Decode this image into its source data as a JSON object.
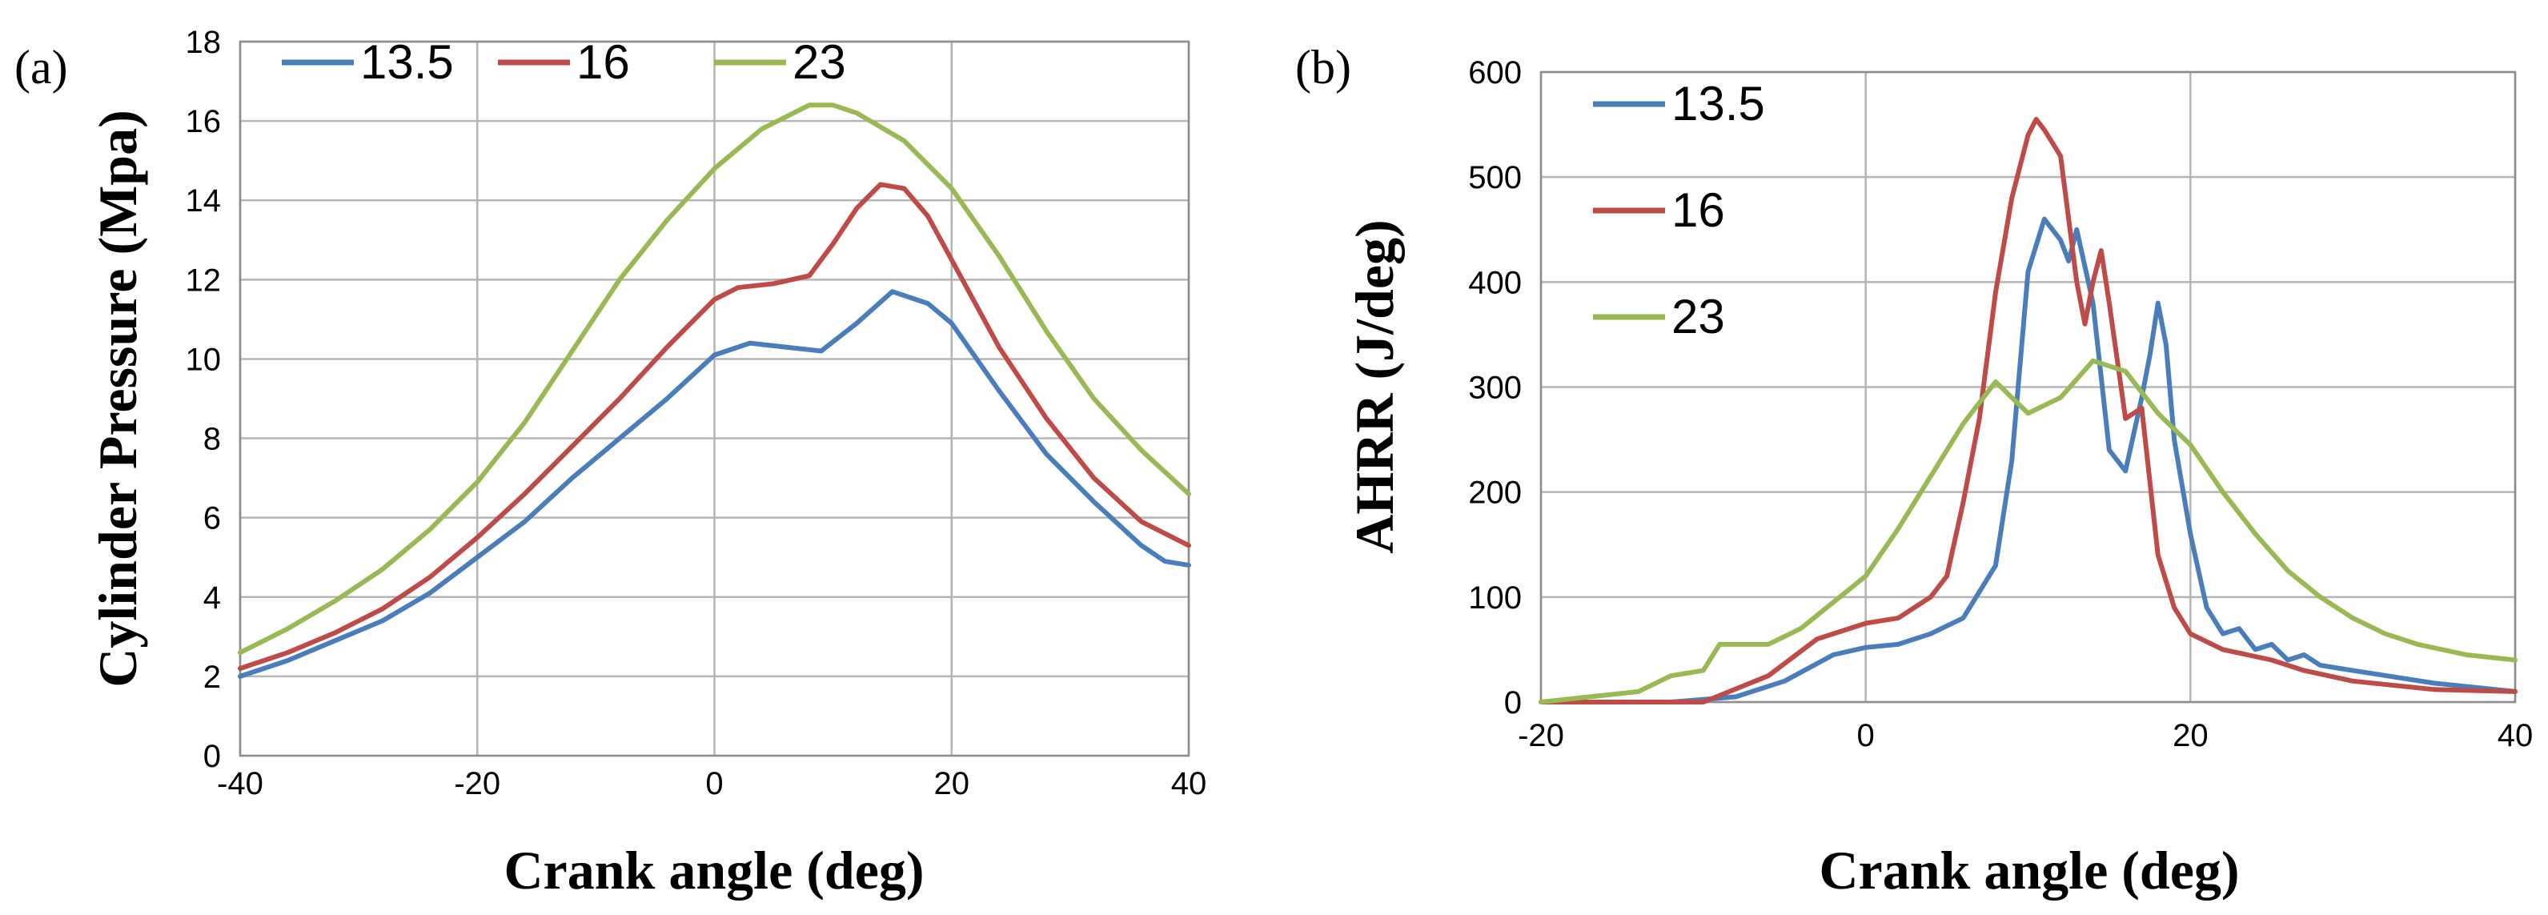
{
  "chart_data": [
    {
      "type": "line",
      "panel_label": "(a)",
      "title": "",
      "xlabel": "Crank angle (deg)",
      "ylabel": "Cylinder Pressure (Mpa)",
      "xlim": [
        -40,
        40
      ],
      "ylim": [
        0,
        18
      ],
      "xticks": [
        -40,
        -20,
        0,
        20,
        40
      ],
      "yticks": [
        0,
        2,
        4,
        6,
        8,
        10,
        12,
        14,
        16,
        18
      ],
      "grid": true,
      "legend": {
        "placement": "top",
        "entries": [
          "13.5",
          "16",
          "23"
        ]
      },
      "series": [
        {
          "name": "13.5",
          "color": "#4a7ebb",
          "x": [
            -40,
            -36,
            -32,
            -28,
            -24,
            -20,
            -16,
            -12,
            -8,
            -4,
            0,
            3,
            6,
            9,
            12,
            15,
            18,
            20,
            24,
            28,
            32,
            36,
            38,
            40
          ],
          "y": [
            2.0,
            2.4,
            2.9,
            3.4,
            4.1,
            5.0,
            5.9,
            7.0,
            8.0,
            9.0,
            10.1,
            10.4,
            10.3,
            10.2,
            10.9,
            11.7,
            11.4,
            10.9,
            9.2,
            7.6,
            6.4,
            5.3,
            4.9,
            4.8
          ]
        },
        {
          "name": "16",
          "color": "#be4b48",
          "x": [
            -40,
            -36,
            -32,
            -28,
            -24,
            -20,
            -16,
            -12,
            -8,
            -4,
            -2,
            0,
            2,
            5,
            8,
            10,
            12,
            14,
            16,
            18,
            20,
            24,
            28,
            32,
            36,
            40
          ],
          "y": [
            2.2,
            2.6,
            3.1,
            3.7,
            4.5,
            5.5,
            6.6,
            7.8,
            9.0,
            10.3,
            10.9,
            11.5,
            11.8,
            11.9,
            12.1,
            12.9,
            13.8,
            14.4,
            14.3,
            13.6,
            12.5,
            10.3,
            8.5,
            7.0,
            5.9,
            5.3
          ]
        },
        {
          "name": "23",
          "color": "#98b954",
          "x": [
            -40,
            -36,
            -32,
            -28,
            -24,
            -20,
            -16,
            -12,
            -8,
            -4,
            0,
            4,
            8,
            10,
            12,
            16,
            20,
            24,
            28,
            32,
            36,
            40
          ],
          "y": [
            2.6,
            3.2,
            3.9,
            4.7,
            5.7,
            6.9,
            8.4,
            10.2,
            12.0,
            13.5,
            14.8,
            15.8,
            16.4,
            16.4,
            16.2,
            15.5,
            14.3,
            12.6,
            10.7,
            9.0,
            7.7,
            6.6
          ]
        }
      ]
    },
    {
      "type": "line",
      "panel_label": "(b)",
      "title": "",
      "xlabel": "Crank angle (deg)",
      "ylabel": "AHRR (J/deg)",
      "xlim": [
        -20,
        40
      ],
      "ylim": [
        0,
        600
      ],
      "xticks": [
        -20,
        0,
        20,
        40
      ],
      "yticks": [
        0,
        100,
        200,
        300,
        400,
        500,
        600
      ],
      "grid": true,
      "legend": {
        "placement": "top-left",
        "entries": [
          "13.5",
          "16",
          "23"
        ]
      },
      "series": [
        {
          "name": "13.5",
          "color": "#4a7ebb",
          "x": [
            -20,
            -12,
            -8,
            -5,
            -2,
            0,
            2,
            4,
            6,
            8,
            9,
            10,
            11,
            12,
            12.5,
            13,
            14,
            15,
            16,
            17,
            17.5,
            18,
            18.5,
            19,
            20,
            21,
            22,
            23,
            24,
            25,
            26,
            27,
            28,
            30,
            35,
            40
          ],
          "y": [
            0,
            0,
            5,
            20,
            45,
            52,
            55,
            65,
            80,
            130,
            230,
            410,
            460,
            440,
            420,
            450,
            380,
            240,
            220,
            290,
            330,
            380,
            340,
            250,
            160,
            90,
            65,
            70,
            50,
            55,
            40,
            45,
            35,
            30,
            18,
            10
          ]
        },
        {
          "name": "16",
          "color": "#be4b48",
          "x": [
            -20,
            -10,
            -6,
            -3,
            0,
            2,
            4,
            5,
            6,
            7,
            8,
            9,
            10,
            10.5,
            11,
            12,
            13,
            13.5,
            14,
            14.5,
            15,
            16,
            17,
            18,
            19,
            20,
            22,
            25,
            27,
            30,
            35,
            40
          ],
          "y": [
            0,
            0,
            25,
            60,
            75,
            80,
            100,
            120,
            190,
            270,
            390,
            480,
            540,
            555,
            545,
            520,
            400,
            360,
            400,
            430,
            380,
            270,
            280,
            140,
            90,
            65,
            50,
            40,
            30,
            20,
            12,
            10
          ]
        },
        {
          "name": "23",
          "color": "#98b954",
          "x": [
            -20,
            -14,
            -12,
            -10,
            -9,
            -6,
            -4,
            -2,
            0,
            2,
            4,
            6,
            8,
            10,
            12,
            14,
            16,
            18,
            20,
            22,
            24,
            26,
            28,
            30,
            32,
            34,
            37,
            40
          ],
          "y": [
            0,
            10,
            25,
            30,
            55,
            55,
            70,
            95,
            120,
            165,
            215,
            265,
            305,
            275,
            290,
            325,
            315,
            275,
            245,
            200,
            160,
            125,
            100,
            80,
            65,
            55,
            45,
            40
          ]
        }
      ]
    }
  ]
}
